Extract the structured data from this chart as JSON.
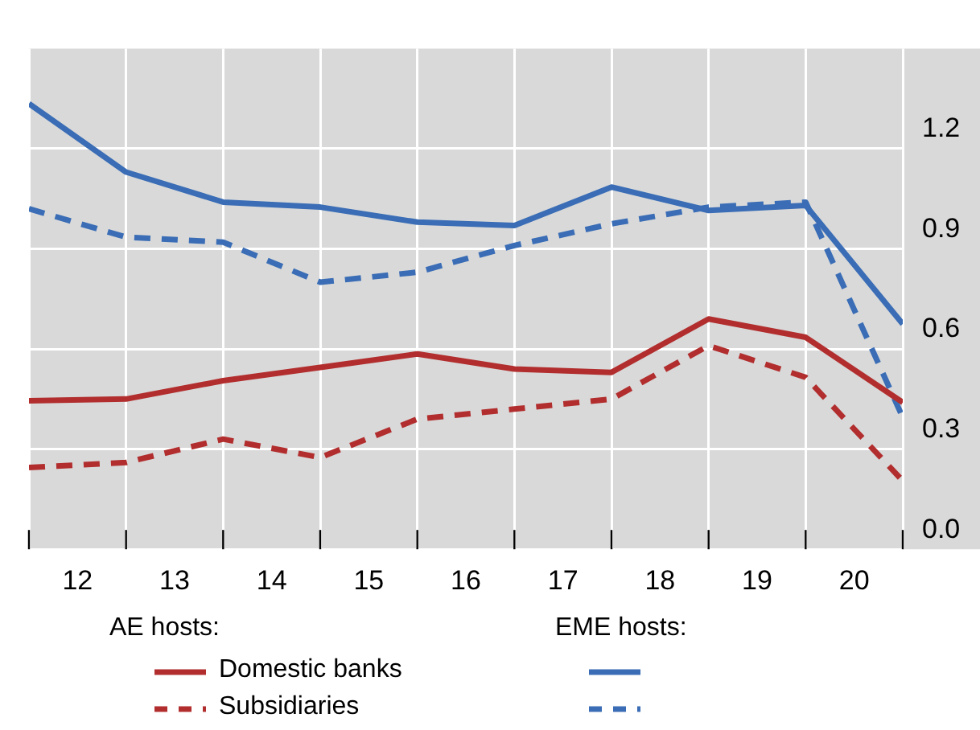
{
  "chart_data": {
    "type": "line",
    "x": [
      11.5,
      12.5,
      13.5,
      14.5,
      15.5,
      16.5,
      17.5,
      18.5,
      19.5,
      20.5
    ],
    "xlim": [
      11.5,
      20.5
    ],
    "xticks": [
      {
        "value": 11.5,
        "label": null
      },
      12,
      {
        "value": 12.5,
        "label": null
      },
      13,
      {
        "value": 13.5,
        "label": null
      },
      14,
      {
        "value": 14.5,
        "label": null
      },
      15,
      {
        "value": 15.5,
        "label": null
      },
      16,
      {
        "value": 16.5,
        "label": null
      },
      17,
      {
        "value": 17.5,
        "label": null
      },
      18,
      {
        "value": 18.5,
        "label": null
      },
      19,
      {
        "value": 19.5,
        "label": null
      },
      20,
      {
        "value": 20.5,
        "label": null
      }
    ],
    "ylim": [
      0,
      1.5
    ],
    "yticks": [
      {
        "value": 0,
        "label": "0.0"
      },
      0.3,
      0.6,
      0.9,
      1.2
    ],
    "grid": true,
    "legend": "bottom",
    "marker": "none",
    "annotations": [
      "AE hosts:",
      "EME hosts:"
    ],
    "series": [
      {
        "name": "Domestic banks",
        "color": "#b22e2e",
        "line_style": "solid",
        "values": [
          0.445,
          0.45,
          0.505,
          0.545,
          0.585,
          0.54,
          0.53,
          0.69,
          0.635,
          0.44
        ]
      },
      {
        "name": "Subsidiaries",
        "color": "#b22e2e",
        "line_style": "dashed",
        "values": [
          0.245,
          0.26,
          0.33,
          0.275,
          0.39,
          0.42,
          0.45,
          0.61,
          0.515,
          0.205
        ]
      },
      {
        "color": "#3a6db5",
        "line_style": "solid",
        "values": [
          1.335,
          1.13,
          1.04,
          1.025,
          0.98,
          0.97,
          1.085,
          1.015,
          1.03,
          0.675
        ]
      },
      {
        "color": "#3a6db5",
        "line_style": "dashed",
        "values": [
          1.02,
          0.935,
          0.92,
          0.8,
          0.83,
          0.91,
          0.975,
          1.025,
          1.04,
          0.395
        ]
      }
    ]
  }
}
